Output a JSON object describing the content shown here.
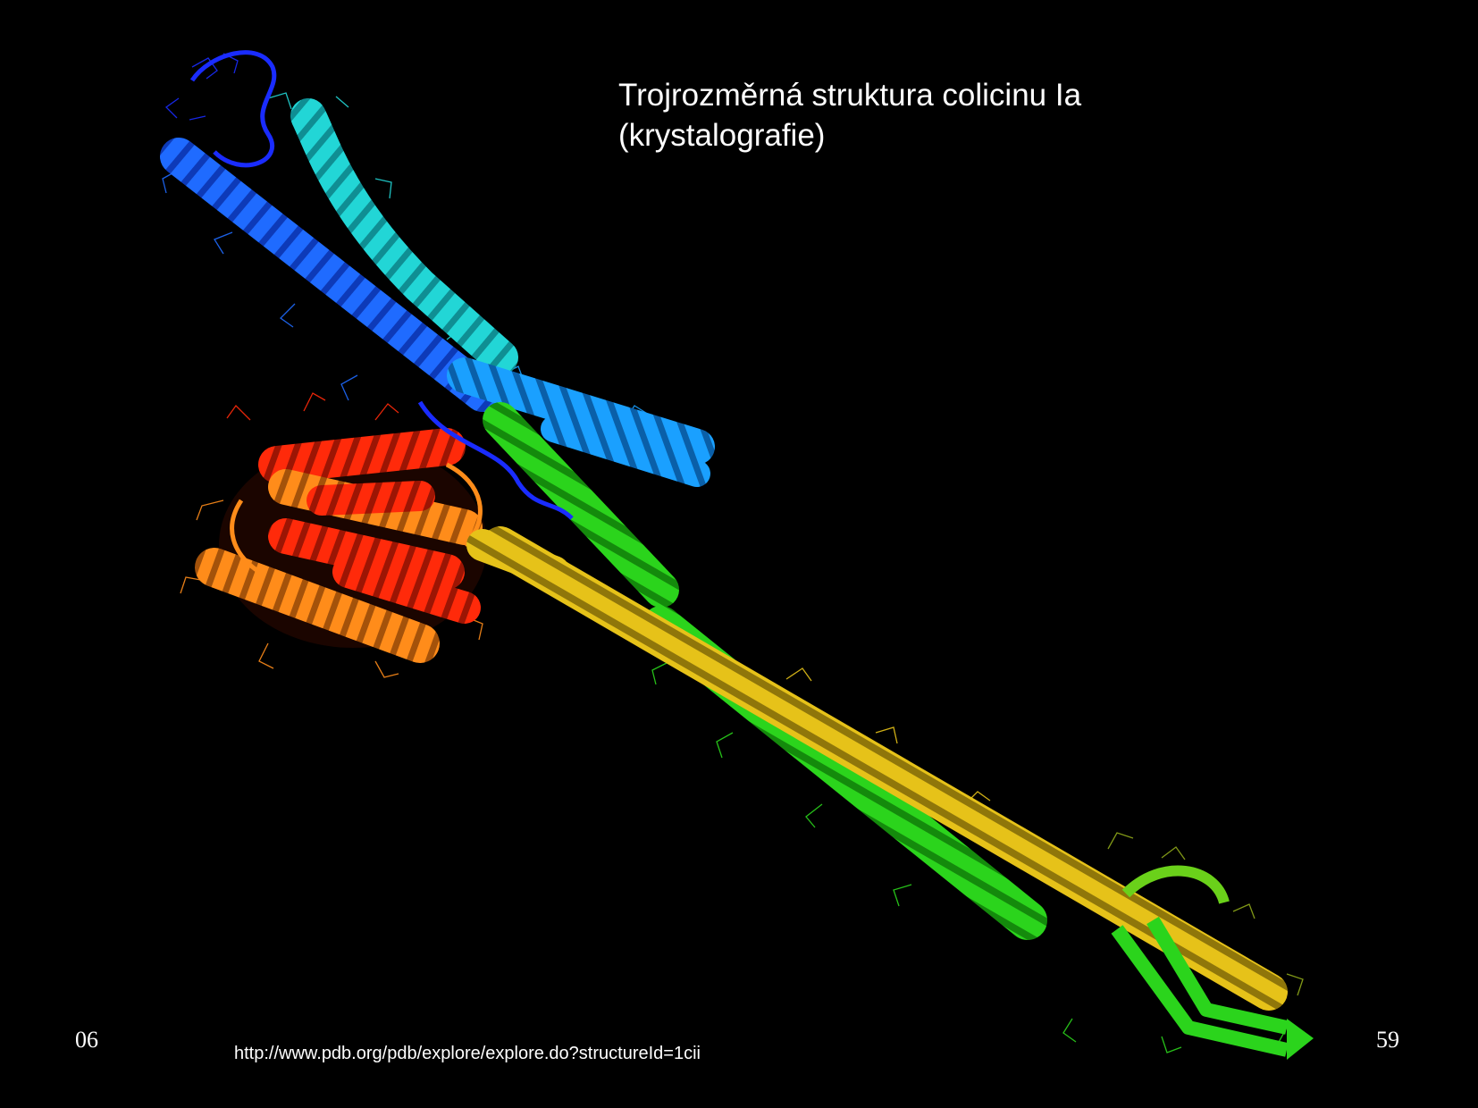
{
  "slide": {
    "background_color": "#000000",
    "title_lines": [
      "Trojrozměrná struktura colicinu Ia",
      "(krystalografie)"
    ],
    "footer_left": "06",
    "footer_right": "59",
    "source_url": "http://www.pdb.org/pdb/explore/explore.do?structureId=1cii"
  },
  "figure": {
    "subject": "colicin Ia ribbon model",
    "colors": {
      "n_terminus": "#1a2cff",
      "blue": "#1f6bff",
      "sky": "#1aa0ff",
      "cyan": "#22d6d6",
      "green": "#2bd41c",
      "yellow": "#e6c219",
      "orange": "#ff8c1a",
      "red": "#ff2a0a",
      "lime": "#6ad11a"
    }
  }
}
